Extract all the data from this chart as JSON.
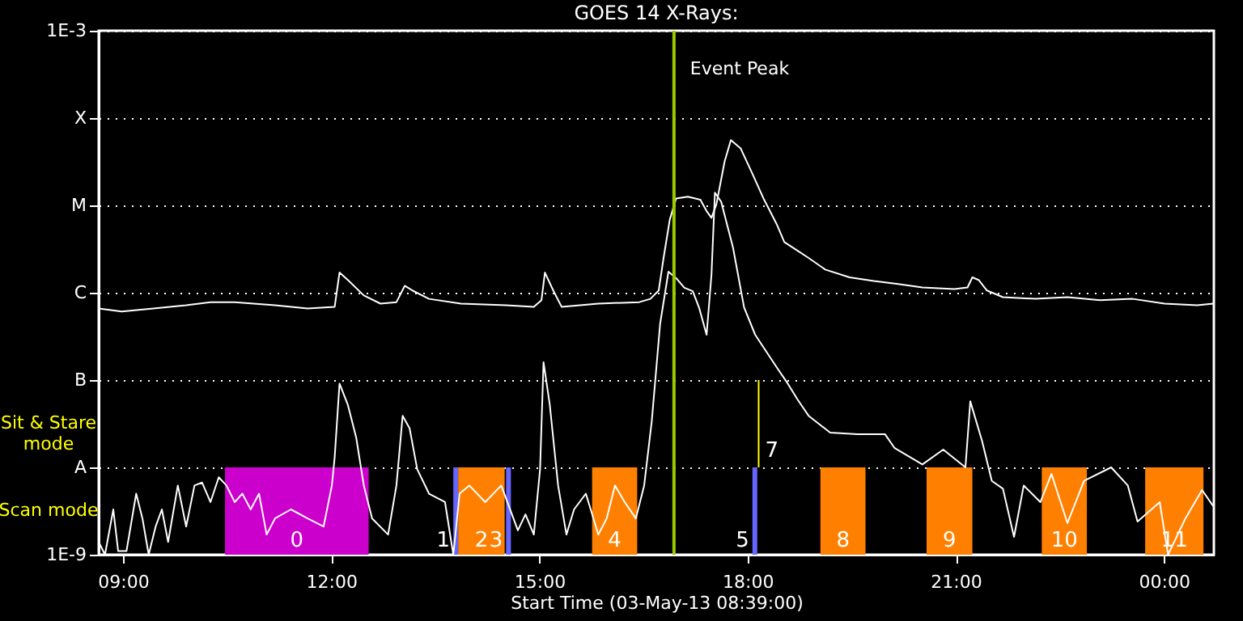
{
  "chart_data": {
    "type": "line",
    "title": "GOES 14 X-Rays:",
    "xlabel": "Start Time (03-May-13 08:39:00)",
    "xlim": [
      8.65,
      24.72
    ],
    "xticks": [
      {
        "value": 9,
        "label": "09:00"
      },
      {
        "value": 12,
        "label": "12:00"
      },
      {
        "value": 15,
        "label": "15:00"
      },
      {
        "value": 18,
        "label": "18:00"
      },
      {
        "value": 21,
        "label": "21:00"
      },
      {
        "value": 24,
        "label": "00:00"
      }
    ],
    "ylim": [
      1e-09,
      0.001
    ],
    "yticks": [
      {
        "value": 1e-09,
        "label": "1E-9"
      },
      {
        "value": 1e-08,
        "label": "A"
      },
      {
        "value": 1e-07,
        "label": "B"
      },
      {
        "value": 1e-06,
        "label": "C"
      },
      {
        "value": 1e-05,
        "label": "M"
      },
      {
        "value": 0.0001,
        "label": "X"
      },
      {
        "value": 0.001,
        "label": "1E-3"
      }
    ],
    "log": "y",
    "grid": "y",
    "marker": "none",
    "line_style": "solid",
    "series": [
      {
        "color": "#ffffff",
        "x": [
          8.65,
          8.98,
          9.44,
          9.91,
          10.26,
          10.61,
          11.19,
          11.66,
          12.05,
          12.12,
          12.24,
          12.47,
          12.71,
          12.94,
          13.06,
          13.17,
          13.41,
          13.87,
          14.52,
          14.92,
          15.03,
          15.08,
          15.2,
          15.32,
          15.85,
          16.44,
          16.6,
          16.72,
          16.79,
          16.88,
          16.97,
          17.14,
          17.32,
          17.41,
          17.48,
          17.55,
          17.67,
          17.76,
          17.9,
          18.07,
          18.23,
          18.42,
          18.53,
          18.7,
          18.88,
          19.12,
          19.47,
          19.82,
          20.17,
          20.52,
          20.98,
          21.17,
          21.24,
          21.33,
          21.45,
          21.68,
          22.15,
          22.61,
          23.08,
          23.55,
          24.01,
          24.48,
          24.71
        ],
        "values": [
          6.6e-07,
          6.1e-07,
          6.6e-07,
          7.2e-07,
          7.8e-07,
          7.8e-07,
          7.2e-07,
          6.6e-07,
          6.9e-07,
          1.7e-06,
          1.4e-06,
          9.3e-07,
          7.5e-07,
          7.8e-07,
          1.2e-06,
          1.06e-06,
          8.5e-07,
          7.5e-07,
          7.2e-07,
          6.9e-07,
          8.2e-07,
          1.7e-06,
          1.06e-06,
          6.9e-07,
          7.5e-07,
          7.8e-07,
          8.5e-07,
          1.06e-06,
          2.5e-06,
          6.9e-06,
          1.2e-05,
          1.26e-05,
          1.16e-05,
          8.6e-06,
          7.2e-06,
          1.02e-05,
          3.2e-05,
          5.6e-05,
          4.5e-05,
          2.3e-05,
          1.2e-05,
          6.1e-06,
          3.8e-06,
          3.1e-06,
          2.5e-06,
          1.84e-06,
          1.5e-06,
          1.36e-06,
          1.26e-06,
          1.15e-06,
          1.1e-06,
          1.15e-06,
          1.5e-06,
          1.4e-06,
          1.06e-06,
          8.9e-07,
          8.5e-07,
          8.9e-07,
          8.2e-07,
          8.5e-07,
          7.5e-07,
          7.2e-07,
          7.5e-07
        ]
      },
      {
        "color": "#ffffff",
        "x": [
          8.65,
          8.74,
          8.86,
          8.93,
          9.05,
          9.19,
          9.28,
          9.37,
          9.47,
          9.56,
          9.65,
          9.79,
          9.91,
          10.03,
          10.14,
          10.26,
          10.38,
          10.49,
          10.61,
          10.72,
          10.84,
          10.96,
          11.07,
          11.19,
          11.42,
          11.66,
          11.89,
          12.01,
          12.05,
          12.12,
          12.24,
          12.36,
          12.47,
          12.59,
          12.82,
          12.94,
          13.03,
          13.13,
          13.24,
          13.41,
          13.64,
          13.76,
          13.85,
          13.99,
          14.22,
          14.45,
          14.69,
          14.8,
          14.92,
          15.01,
          15.06,
          15.15,
          15.27,
          15.39,
          15.5,
          15.67,
          15.85,
          15.97,
          16.09,
          16.23,
          16.39,
          16.51,
          16.62,
          16.74,
          16.86,
          16.97,
          17.09,
          17.21,
          17.3,
          17.41,
          17.48,
          17.53,
          17.62,
          17.79,
          17.95,
          18.11,
          18.42,
          18.58,
          18.72,
          18.88,
          19.19,
          19.58,
          19.98,
          20.12,
          20.52,
          20.82,
          21.14,
          21.21,
          21.38,
          21.52,
          21.68,
          21.84,
          21.98,
          22.22,
          22.38,
          22.61,
          22.85,
          23.24,
          23.48,
          23.62,
          23.94,
          24.06,
          24.31,
          24.55,
          24.71
        ],
        "values": [
          1.4e-09,
          1e-09,
          3.3e-09,
          1.1e-09,
          1.1e-09,
          5e-09,
          2.6e-09,
          1e-09,
          2.1e-09,
          3.3e-09,
          1.4e-09,
          6.2e-09,
          2.1e-09,
          6.2e-09,
          6.7e-09,
          4e-09,
          7.7e-09,
          6.2e-09,
          4e-09,
          5e-09,
          3.3e-09,
          5e-09,
          1.7e-09,
          2.6e-09,
          3.3e-09,
          2.6e-09,
          2.1e-09,
          6.2e-09,
          1.3e-08,
          9.1e-08,
          5.2e-08,
          2.2e-08,
          6.2e-09,
          2.6e-09,
          1.7e-09,
          6.2e-09,
          3.9e-08,
          2.8e-08,
          9.5e-09,
          5e-09,
          4e-09,
          1e-09,
          5e-09,
          6.2e-09,
          4e-09,
          6.2e-09,
          1.9e-09,
          2.9e-09,
          1.7e-09,
          9.5e-09,
          1.6e-07,
          5.2e-08,
          6.2e-09,
          1.7e-09,
          3.3e-09,
          5e-09,
          1.7e-09,
          2.6e-09,
          6.2e-09,
          4e-09,
          2.6e-09,
          6.2e-09,
          3.4e-08,
          4.4e-07,
          1.74e-06,
          1.47e-06,
          1.14e-06,
          1.04e-06,
          6.8e-07,
          3.3e-07,
          1.6e-06,
          1.4e-05,
          1.1e-05,
          3.3e-06,
          6.8e-07,
          3.3e-07,
          1.4e-07,
          9.1e-08,
          6e-08,
          3.9e-08,
          2.5e-08,
          2.4e-08,
          2.4e-08,
          1.66e-08,
          1.08e-08,
          1.6e-08,
          1e-08,
          5.7e-08,
          2e-08,
          7e-09,
          5.7e-09,
          1.6e-09,
          6.2e-09,
          4e-09,
          8.4e-09,
          2.3e-09,
          7e-09,
          1e-08,
          6.2e-09,
          2.4e-09,
          4e-09,
          1e-09,
          2.6e-09,
          5.5e-09,
          3.6e-09
        ]
      },
      {
        "color": "#ffff00",
        "x": [
          18.16,
          18.16
        ],
        "values": [
          1e-08,
          1e-07
        ]
      }
    ],
    "bands": [
      {
        "axis": "x",
        "from": 10.47,
        "to": 12.54,
        "label": "0",
        "color": "#cc00cc"
      },
      {
        "axis": "x",
        "from": 13.76,
        "to": 13.83,
        "label": "1",
        "color": "#6666ff"
      },
      {
        "axis": "x",
        "from": 13.83,
        "to": 14.5,
        "label": "2",
        "color": "#ff8000"
      },
      {
        "axis": "x",
        "from": 14.52,
        "to": 14.59,
        "label": "3",
        "color": "#6666ff"
      },
      {
        "axis": "x",
        "from": 15.76,
        "to": 16.41,
        "label": "4",
        "color": "#ff8000"
      },
      {
        "axis": "x",
        "from": 18.07,
        "to": 18.14,
        "label": "5",
        "color": "#6666ff"
      },
      {
        "axis": "x",
        "from": 19.05,
        "to": 19.7,
        "label": "8",
        "color": "#ff8000"
      },
      {
        "axis": "x",
        "from": 20.58,
        "to": 21.24,
        "label": "9",
        "color": "#ff8000"
      },
      {
        "axis": "x",
        "from": 22.24,
        "to": 22.89,
        "label": "10",
        "color": "#ff8000"
      },
      {
        "axis": "x",
        "from": 23.73,
        "to": 24.57,
        "label": "11",
        "color": "#ff8000"
      }
    ],
    "ref_lines": [
      {
        "axis": "x",
        "value": 16.94,
        "label": "Event Peak",
        "color": "#99cc00",
        "line_style": "solid"
      }
    ],
    "annotations": [
      "Sit & Stare mode",
      "Scan mode",
      "7"
    ]
  }
}
